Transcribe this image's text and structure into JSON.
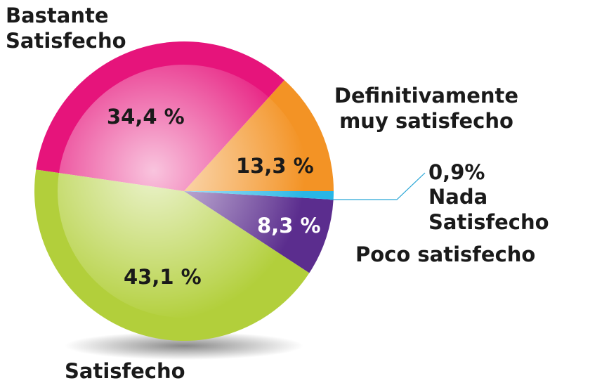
{
  "chart_data": {
    "type": "pie",
    "categories": [
      "Definitivamente muy satisfecho",
      "Bastante Satisfecho",
      "Satisfecho",
      "Poco satisfecho",
      "Nada Satisfecho"
    ],
    "values": [
      13.3,
      34.4,
      43.1,
      8.3,
      0.9
    ],
    "value_labels": [
      "13,3 %",
      "34,4 %",
      "43,1 %",
      "8,3 %",
      "0,9%"
    ],
    "colors": [
      "#f39325",
      "#e6147b",
      "#b2cf3b",
      "#5b2d8e",
      "#29b6e6"
    ]
  }
}
